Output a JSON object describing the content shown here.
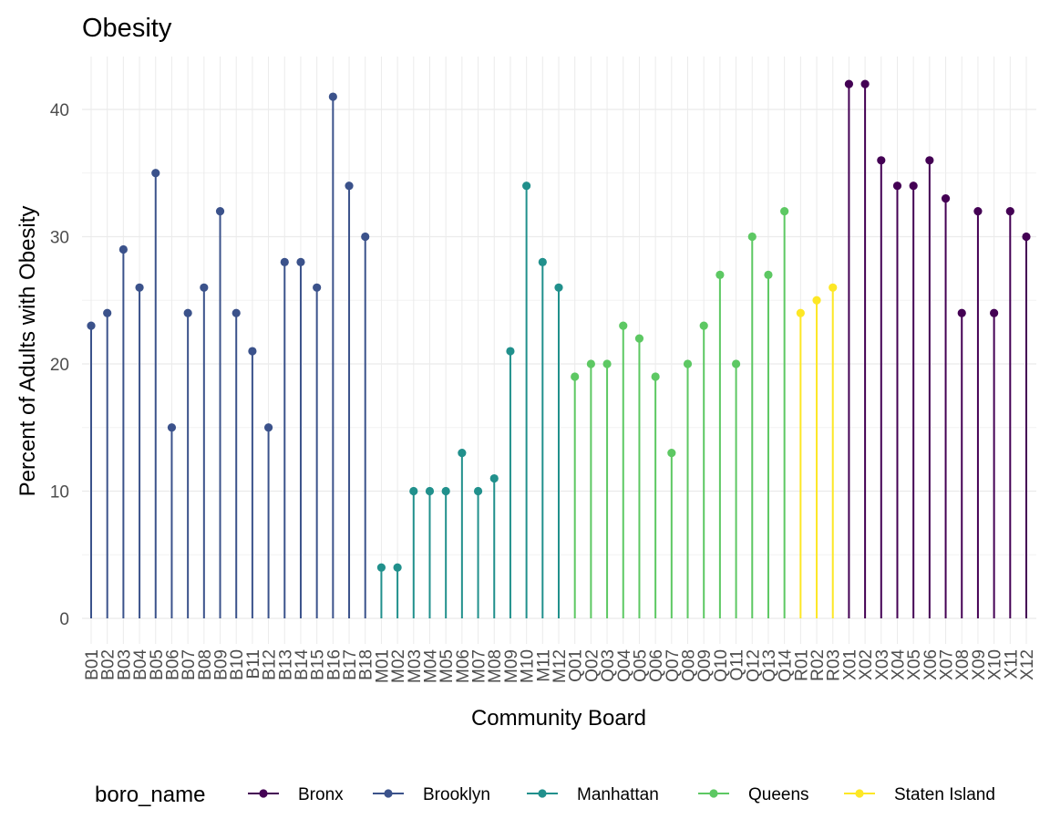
{
  "chart_data": {
    "type": "lollipop",
    "title": "Obesity",
    "xlabel": "Community Board",
    "ylabel": "Percent of Adults with Obesity",
    "ylim": [
      0,
      44
    ],
    "yticks": [
      0,
      10,
      20,
      30,
      40
    ],
    "grid": true,
    "legend_title": "boro_name",
    "legend_position": "bottom",
    "groups": [
      {
        "name": "Bronx",
        "color": "#440154"
      },
      {
        "name": "Brooklyn",
        "color": "#3B528B"
      },
      {
        "name": "Manhattan",
        "color": "#21908C"
      },
      {
        "name": "Queens",
        "color": "#5DC863"
      },
      {
        "name": "Staten Island",
        "color": "#FDE725"
      }
    ],
    "points": [
      {
        "x": "B01",
        "y": 23,
        "group": "Brooklyn"
      },
      {
        "x": "B02",
        "y": 24,
        "group": "Brooklyn"
      },
      {
        "x": "B03",
        "y": 29,
        "group": "Brooklyn"
      },
      {
        "x": "B04",
        "y": 26,
        "group": "Brooklyn"
      },
      {
        "x": "B05",
        "y": 35,
        "group": "Brooklyn"
      },
      {
        "x": "B06",
        "y": 15,
        "group": "Brooklyn"
      },
      {
        "x": "B07",
        "y": 24,
        "group": "Brooklyn"
      },
      {
        "x": "B08",
        "y": 26,
        "group": "Brooklyn"
      },
      {
        "x": "B09",
        "y": 32,
        "group": "Brooklyn"
      },
      {
        "x": "B10",
        "y": 24,
        "group": "Brooklyn"
      },
      {
        "x": "B11",
        "y": 21,
        "group": "Brooklyn"
      },
      {
        "x": "B12",
        "y": 15,
        "group": "Brooklyn"
      },
      {
        "x": "B13",
        "y": 28,
        "group": "Brooklyn"
      },
      {
        "x": "B14",
        "y": 28,
        "group": "Brooklyn"
      },
      {
        "x": "B15",
        "y": 26,
        "group": "Brooklyn"
      },
      {
        "x": "B16",
        "y": 41,
        "group": "Brooklyn"
      },
      {
        "x": "B17",
        "y": 34,
        "group": "Brooklyn"
      },
      {
        "x": "B18",
        "y": 30,
        "group": "Brooklyn"
      },
      {
        "x": "M01",
        "y": 4,
        "group": "Manhattan"
      },
      {
        "x": "M02",
        "y": 4,
        "group": "Manhattan"
      },
      {
        "x": "M03",
        "y": 10,
        "group": "Manhattan"
      },
      {
        "x": "M04",
        "y": 10,
        "group": "Manhattan"
      },
      {
        "x": "M05",
        "y": 10,
        "group": "Manhattan"
      },
      {
        "x": "M06",
        "y": 13,
        "group": "Manhattan"
      },
      {
        "x": "M07",
        "y": 10,
        "group": "Manhattan"
      },
      {
        "x": "M08",
        "y": 11,
        "group": "Manhattan"
      },
      {
        "x": "M09",
        "y": 21,
        "group": "Manhattan"
      },
      {
        "x": "M10",
        "y": 34,
        "group": "Manhattan"
      },
      {
        "x": "M11",
        "y": 28,
        "group": "Manhattan"
      },
      {
        "x": "M12",
        "y": 26,
        "group": "Manhattan"
      },
      {
        "x": "Q01",
        "y": 19,
        "group": "Queens"
      },
      {
        "x": "Q02",
        "y": 20,
        "group": "Queens"
      },
      {
        "x": "Q03",
        "y": 20,
        "group": "Queens"
      },
      {
        "x": "Q04",
        "y": 23,
        "group": "Queens"
      },
      {
        "x": "Q05",
        "y": 22,
        "group": "Queens"
      },
      {
        "x": "Q06",
        "y": 19,
        "group": "Queens"
      },
      {
        "x": "Q07",
        "y": 13,
        "group": "Queens"
      },
      {
        "x": "Q08",
        "y": 20,
        "group": "Queens"
      },
      {
        "x": "Q09",
        "y": 23,
        "group": "Queens"
      },
      {
        "x": "Q10",
        "y": 27,
        "group": "Queens"
      },
      {
        "x": "Q11",
        "y": 20,
        "group": "Queens"
      },
      {
        "x": "Q12",
        "y": 30,
        "group": "Queens"
      },
      {
        "x": "Q13",
        "y": 27,
        "group": "Queens"
      },
      {
        "x": "Q14",
        "y": 32,
        "group": "Queens"
      },
      {
        "x": "R01",
        "y": 24,
        "group": "Staten Island"
      },
      {
        "x": "R02",
        "y": 25,
        "group": "Staten Island"
      },
      {
        "x": "R03",
        "y": 26,
        "group": "Staten Island"
      },
      {
        "x": "X01",
        "y": 42,
        "group": "Bronx"
      },
      {
        "x": "X02",
        "y": 42,
        "group": "Bronx"
      },
      {
        "x": "X03",
        "y": 36,
        "group": "Bronx"
      },
      {
        "x": "X04",
        "y": 34,
        "group": "Bronx"
      },
      {
        "x": "X05",
        "y": 34,
        "group": "Bronx"
      },
      {
        "x": "X06",
        "y": 36,
        "group": "Bronx"
      },
      {
        "x": "X07",
        "y": 33,
        "group": "Bronx"
      },
      {
        "x": "X08",
        "y": 24,
        "group": "Bronx"
      },
      {
        "x": "X09",
        "y": 32,
        "group": "Bronx"
      },
      {
        "x": "X10",
        "y": 24,
        "group": "Bronx"
      },
      {
        "x": "X11",
        "y": 32,
        "group": "Bronx"
      },
      {
        "x": "X12",
        "y": 30,
        "group": "Bronx"
      }
    ]
  }
}
